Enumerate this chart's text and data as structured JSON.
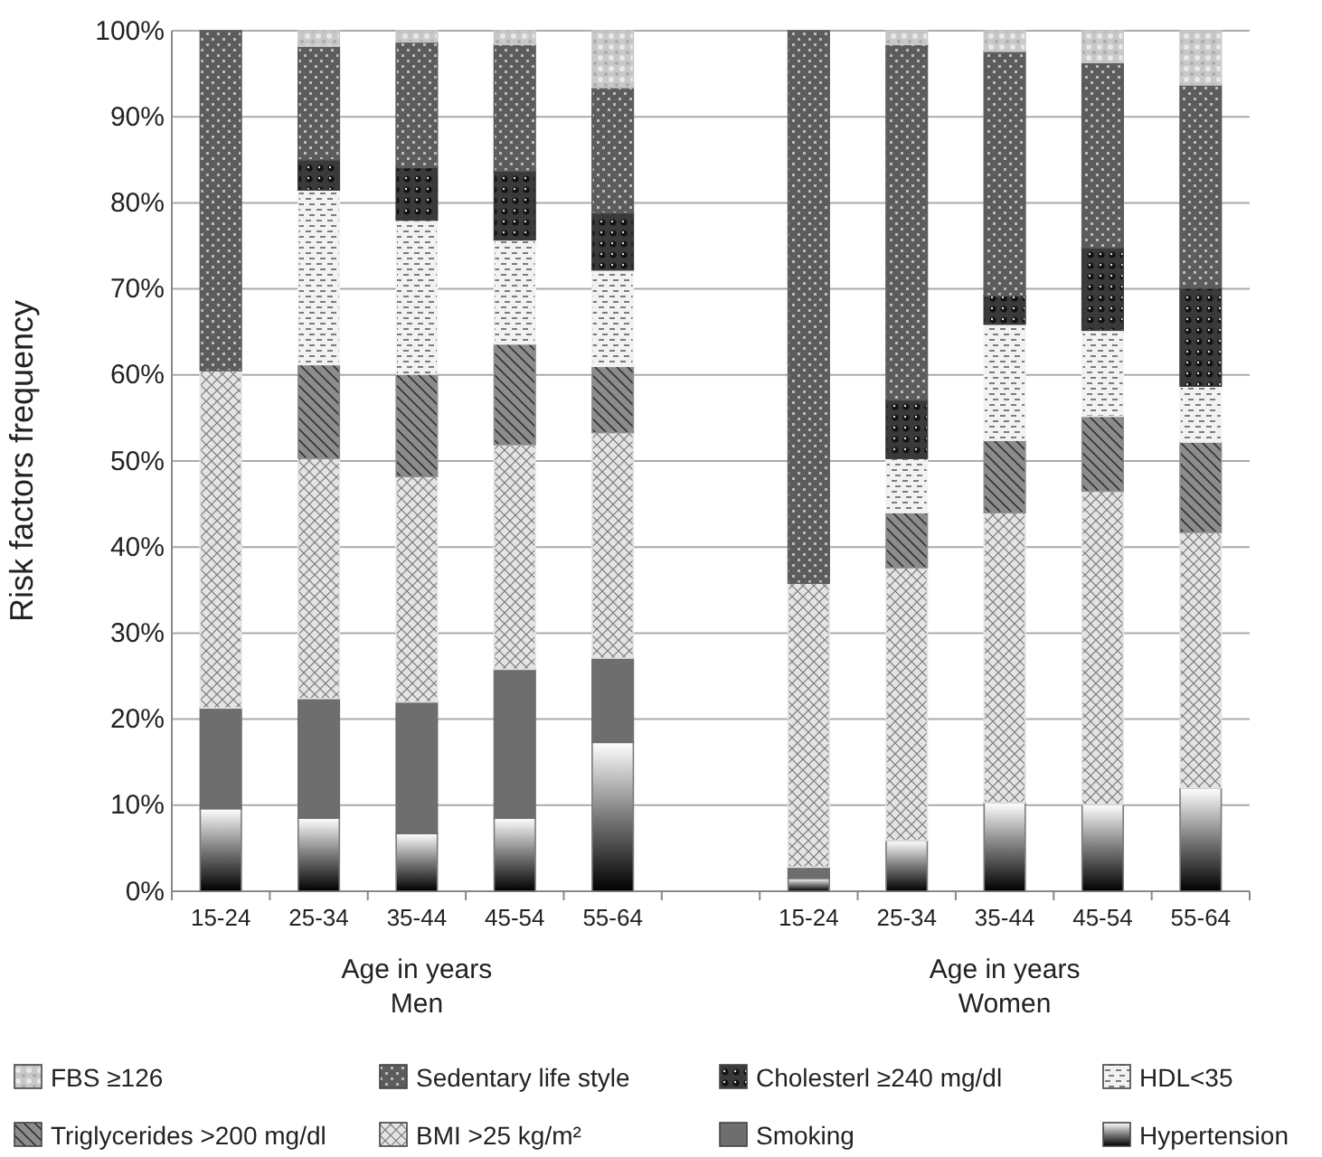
{
  "chart_data": {
    "type": "bar",
    "stacked": true,
    "ylabel": "Risk factors frequency",
    "categories": [
      "15-24",
      "25-34",
      "35-44",
      "45-54",
      "55-64",
      null,
      "15-24",
      "25-34",
      "35-44",
      "45-54",
      "55-64"
    ],
    "ylim": [
      0,
      100
    ],
    "yticks": [
      {
        "value": 0,
        "label": "0%"
      },
      {
        "value": 10,
        "label": "10%"
      },
      {
        "value": 20,
        "label": "20%"
      },
      {
        "value": 30,
        "label": "30%"
      },
      {
        "value": 40,
        "label": "40%"
      },
      {
        "value": 50,
        "label": "50%"
      },
      {
        "value": 60,
        "label": "60%"
      },
      {
        "value": 70,
        "label": "70%"
      },
      {
        "value": 80,
        "label": "80%"
      },
      {
        "value": 90,
        "label": "90%"
      },
      {
        "value": 100,
        "label": "100%"
      }
    ],
    "grid": "y",
    "legend": "bottom",
    "annotations": [
      "Age in years\nMen",
      "Age in years\nWomen"
    ],
    "series": [
      {
        "name": "Hypertension",
        "color": "#7a7a7a",
        "values": [
          9.6,
          8.5,
          6.7,
          8.5,
          17.3,
          null,
          1.5,
          5.9,
          10.3,
          10.1,
          12.0
        ]
      },
      {
        "name": "Smoking",
        "color": "#6e6e6e",
        "values": [
          11.7,
          13.9,
          15.3,
          17.3,
          9.8,
          null,
          1.3,
          0,
          0,
          0,
          0
        ]
      },
      {
        "name": "BMI >25 kg/m²",
        "color": "#e4e4e4",
        "values": [
          39.2,
          27.9,
          26.2,
          26.1,
          26.2,
          null,
          33.0,
          31.7,
          33.7,
          36.4,
          29.7
        ]
      },
      {
        "name": "Triglycerides >200 mg/dl",
        "color": "#8c8c8c",
        "values": [
          0,
          10.9,
          11.9,
          11.7,
          7.7,
          null,
          0,
          6.4,
          8.4,
          8.7,
          10.5
        ]
      },
      {
        "name": "HDL<35",
        "color": "#f2f2f2",
        "values": [
          0,
          20.3,
          17.9,
          12.1,
          11.2,
          null,
          0,
          6.3,
          13.5,
          10.0,
          6.5
        ]
      },
      {
        "name": "Cholesterl ≥240 mg/dl",
        "color": "#3a3a3a",
        "values": [
          0,
          3.5,
          6.1,
          8.0,
          6.6,
          null,
          0,
          6.8,
          3.3,
          9.6,
          11.4
        ]
      },
      {
        "name": "Sedentary life style",
        "color": "#5c5c5c",
        "values": [
          39.5,
          13.2,
          14.6,
          14.7,
          14.6,
          null,
          64.2,
          41.3,
          28.4,
          21.5,
          23.6
        ]
      },
      {
        "name": "FBS ≥126",
        "color": "#c8c8c8",
        "values": [
          0,
          1.8,
          1.3,
          1.6,
          6.6,
          null,
          0,
          1.6,
          2.4,
          3.7,
          6.3
        ]
      }
    ]
  }
}
